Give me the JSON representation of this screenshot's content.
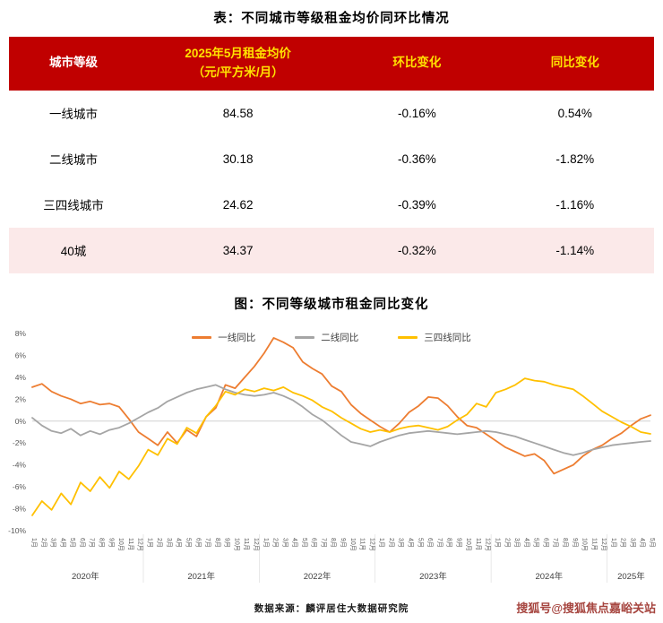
{
  "page": {
    "table_title": "表：不同城市等级租金均价同环比情况",
    "chart_title": "图：不同等级城市租金同比变化",
    "source": "数据来源：麟评居住大数据研究院",
    "watermark": "搜狐号@搜狐焦点嘉峪关站"
  },
  "colors": {
    "header_bg": "#c00000",
    "header_text_primary": "#ffffff",
    "header_text_accent": "#ffe100",
    "highlight_row_bg": "#fbe9e9",
    "line_tier1": "#ed7d31",
    "line_tier2": "#a5a5a5",
    "line_tier34": "#ffc000",
    "watermark": "#a6453f"
  },
  "table": {
    "columns": [
      "城市等级",
      "2025年5月租金均价\n（元/平方米/月）",
      "环比变化",
      "同比变化"
    ],
    "rows": [
      {
        "tier": "一线城市",
        "price": "84.58",
        "mom": "-0.16%",
        "yoy": "0.54%",
        "highlight": false
      },
      {
        "tier": "二线城市",
        "price": "30.18",
        "mom": "-0.36%",
        "yoy": "-1.82%",
        "highlight": false
      },
      {
        "tier": "三四线城市",
        "price": "24.62",
        "mom": "-0.39%",
        "yoy": "-1.16%",
        "highlight": false
      },
      {
        "tier": "40城",
        "price": "34.37",
        "mom": "-0.32%",
        "yoy": "-1.14%",
        "highlight": true
      }
    ]
  },
  "chart_data": {
    "type": "line",
    "title": "图：不同等级城市租金同比变化",
    "ylim": [
      -10,
      8
    ],
    "ytick_step": 2,
    "yticks": [
      "8%",
      "6%",
      "4%",
      "2%",
      "0%",
      "-2%",
      "-4%",
      "-6%",
      "-8%",
      "-10%"
    ],
    "legend_position": "top",
    "grid": "zero-line-only",
    "x_months": [
      "1月",
      "2月",
      "3月",
      "4月",
      "5月",
      "6月",
      "7月",
      "8月",
      "9月",
      "10月",
      "11月",
      "12月",
      "1月",
      "2月",
      "3月",
      "4月",
      "5月",
      "6月",
      "7月",
      "8月",
      "9月",
      "10月",
      "11月",
      "12月",
      "1月",
      "2月",
      "3月",
      "4月",
      "5月",
      "6月",
      "7月",
      "8月",
      "9月",
      "10月",
      "11月",
      "12月",
      "1月",
      "2月",
      "3月",
      "4月",
      "5月",
      "6月",
      "7月",
      "8月",
      "9月",
      "10月",
      "11月",
      "12月",
      "1月",
      "2月",
      "3月",
      "4月",
      "5月",
      "6月",
      "7月",
      "8月",
      "9月",
      "10月",
      "11月",
      "12月",
      "1月",
      "2月",
      "3月",
      "4月",
      "5月"
    ],
    "x_years": [
      {
        "label": "2020年",
        "start": 0,
        "count": 12
      },
      {
        "label": "2021年",
        "start": 12,
        "count": 12
      },
      {
        "label": "2022年",
        "start": 24,
        "count": 12
      },
      {
        "label": "2023年",
        "start": 36,
        "count": 12
      },
      {
        "label": "2024年",
        "start": 48,
        "count": 12
      },
      {
        "label": "2025年",
        "start": 60,
        "count": 5
      }
    ],
    "series": [
      {
        "name": "一线同比",
        "color": "#ed7d31",
        "values": [
          3.1,
          3.4,
          2.7,
          2.3,
          2.0,
          1.6,
          1.8,
          1.5,
          1.6,
          1.3,
          0.2,
          -1.0,
          -1.6,
          -2.2,
          -1.0,
          -2.0,
          -0.8,
          -1.4,
          0.4,
          1.2,
          3.3,
          3.0,
          4.0,
          5.0,
          6.2,
          7.6,
          7.2,
          6.7,
          5.4,
          4.8,
          4.3,
          3.2,
          2.7,
          1.5,
          0.7,
          0.1,
          -0.5,
          -1.0,
          -0.2,
          0.8,
          1.4,
          2.2,
          2.1,
          1.4,
          0.4,
          -0.4,
          -0.6,
          -1.2,
          -1.8,
          -2.4,
          -2.8,
          -3.2,
          -3.0,
          -3.6,
          -4.8,
          -4.4,
          -4.0,
          -3.2,
          -2.6,
          -2.2,
          -1.6,
          -1.1,
          -0.4,
          0.2,
          0.54
        ]
      },
      {
        "name": "二线同比",
        "color": "#a5a5a5",
        "values": [
          0.3,
          -0.4,
          -0.9,
          -1.1,
          -0.7,
          -1.3,
          -0.9,
          -1.2,
          -0.8,
          -0.6,
          -0.2,
          0.3,
          0.8,
          1.2,
          1.8,
          2.2,
          2.6,
          2.9,
          3.1,
          3.3,
          2.9,
          2.6,
          2.4,
          2.3,
          2.4,
          2.6,
          2.3,
          1.9,
          1.3,
          0.6,
          0.1,
          -0.6,
          -1.3,
          -1.9,
          -2.1,
          -2.3,
          -1.9,
          -1.6,
          -1.3,
          -1.1,
          -1.0,
          -0.9,
          -1.0,
          -1.1,
          -1.2,
          -1.1,
          -1.0,
          -0.9,
          -1.0,
          -1.2,
          -1.4,
          -1.7,
          -2.0,
          -2.3,
          -2.6,
          -2.9,
          -3.1,
          -2.9,
          -2.6,
          -2.4,
          -2.2,
          -2.1,
          -2.0,
          -1.9,
          -1.82
        ]
      },
      {
        "name": "三四线同比",
        "color": "#ffc000",
        "values": [
          -8.6,
          -7.3,
          -8.1,
          -6.6,
          -7.6,
          -5.6,
          -6.4,
          -5.1,
          -6.1,
          -4.6,
          -5.3,
          -4.1,
          -2.6,
          -3.1,
          -1.6,
          -2.1,
          -0.6,
          -1.1,
          0.4,
          1.4,
          2.7,
          2.4,
          2.9,
          2.7,
          3.0,
          2.8,
          3.1,
          2.6,
          2.3,
          1.9,
          1.3,
          0.9,
          0.3,
          -0.2,
          -0.7,
          -1.0,
          -0.8,
          -1.0,
          -0.7,
          -0.5,
          -0.4,
          -0.6,
          -0.8,
          -0.5,
          0.1,
          0.6,
          1.6,
          1.3,
          2.6,
          2.9,
          3.3,
          3.9,
          3.7,
          3.6,
          3.3,
          3.1,
          2.9,
          2.3,
          1.6,
          0.9,
          0.4,
          -0.1,
          -0.5,
          -1.0,
          -1.16
        ]
      }
    ]
  }
}
